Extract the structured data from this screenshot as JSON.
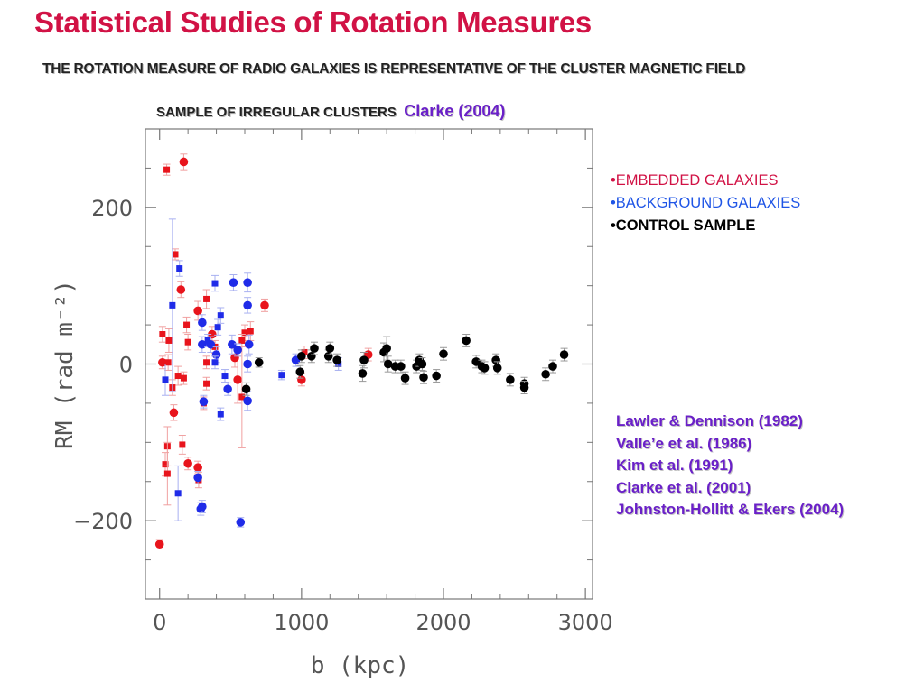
{
  "title": "Statistical Studies of Rotation Measures",
  "subtitle": "THE ROTATION MEASURE OF RADIO GALAXIES  IS REPRESENTATIVE  OF THE CLUSTER MAGNETIC FIELD",
  "sample": {
    "label": "SAMPLE OF IRREGULAR CLUSTERS",
    "reference": "Clarke (2004)"
  },
  "legend": [
    {
      "bullet": "•",
      "label": "EMBEDDED GALAXIES",
      "color": "#d11245"
    },
    {
      "bullet": "•",
      "label": "BACKGROUND GALAXIES",
      "color": "#1f55e6"
    },
    {
      "bullet": "•",
      "label": "CONTROL SAMPLE",
      "color": "#000000"
    }
  ],
  "references": [
    "Lawler & Dennison (1982)",
    "Valle’e et al. (1986)",
    "Kim et al. (1991)",
    "Clarke et al. (2001)",
    "Johnston-Hollitt & Ekers (2004)"
  ],
  "chart_data": {
    "type": "scatter",
    "xlabel": "b (kpc)",
    "ylabel": "RM (rad m⁻²)",
    "xlim": [
      -100,
      3050
    ],
    "ylim": [
      -300,
      300
    ],
    "x_ticks": [
      0,
      1000,
      2000,
      3000
    ],
    "x_tick_labels": [
      "0",
      "1000",
      "2000",
      "3000"
    ],
    "y_ticks": [
      -200,
      0,
      200
    ],
    "y_tick_labels": [
      "−200",
      "0",
      "200"
    ],
    "grid": false,
    "series": [
      {
        "name": "EMBEDDED GALAXIES",
        "color": "#e8141c",
        "points": [
          {
            "x": 50,
            "y": 248,
            "m": "s",
            "e": 7
          },
          {
            "x": 170,
            "y": 258,
            "m": "c",
            "e": 10
          },
          {
            "x": 110,
            "y": 140,
            "m": "s",
            "e": 7
          },
          {
            "x": 150,
            "y": 95,
            "m": "c",
            "e": 10
          },
          {
            "x": 20,
            "y": 38,
            "m": "s",
            "e": 10
          },
          {
            "x": 65,
            "y": 30,
            "m": "s",
            "e": 15
          },
          {
            "x": 20,
            "y": 2,
            "m": "c",
            "e": 8
          },
          {
            "x": 60,
            "y": 2,
            "m": "s",
            "e": 10
          },
          {
            "x": 130,
            "y": -15,
            "m": "s",
            "e": 12
          },
          {
            "x": 90,
            "y": -30,
            "m": "s",
            "e": 10
          },
          {
            "x": 170,
            "y": -18,
            "m": "s",
            "e": 8
          },
          {
            "x": 100,
            "y": -62,
            "m": "c",
            "e": 10
          },
          {
            "x": 40,
            "y": -128,
            "m": "s",
            "e": 15
          },
          {
            "x": 55,
            "y": -105,
            "m": "s",
            "e": 25
          },
          {
            "x": 55,
            "y": -140,
            "m": "s",
            "e": 40
          },
          {
            "x": 160,
            "y": -103,
            "m": "s",
            "e": 12
          },
          {
            "x": 200,
            "y": -127,
            "m": "c",
            "e": 8
          },
          {
            "x": 270,
            "y": -132,
            "m": "c",
            "e": 8
          },
          {
            "x": 275,
            "y": -148,
            "m": "s",
            "e": 10
          },
          {
            "x": 190,
            "y": 50,
            "m": "s",
            "e": 10
          },
          {
            "x": 270,
            "y": 68,
            "m": "c",
            "e": 12
          },
          {
            "x": 330,
            "y": 83,
            "m": "s",
            "e": 12
          },
          {
            "x": 200,
            "y": 28,
            "m": "s",
            "e": 10
          },
          {
            "x": 330,
            "y": 2,
            "m": "s",
            "e": 8
          },
          {
            "x": 310,
            "y": -50,
            "m": "s",
            "e": 8
          },
          {
            "x": 330,
            "y": -25,
            "m": "s",
            "e": 8
          },
          {
            "x": 370,
            "y": 38,
            "m": "c",
            "e": 10
          },
          {
            "x": 390,
            "y": 22,
            "m": "s",
            "e": 8
          },
          {
            "x": 550,
            "y": -20,
            "m": "c",
            "e": 30
          },
          {
            "x": 580,
            "y": -42,
            "m": "s",
            "e": 65
          },
          {
            "x": 600,
            "y": 40,
            "m": "s",
            "e": 10
          },
          {
            "x": 640,
            "y": 42,
            "m": "s",
            "e": 12
          },
          {
            "x": 580,
            "y": 30,
            "m": "s",
            "e": 8
          },
          {
            "x": 530,
            "y": 8,
            "m": "c",
            "e": 12
          },
          {
            "x": 740,
            "y": 75,
            "m": "c",
            "e": 8
          },
          {
            "x": 1020,
            "y": 15,
            "m": "s",
            "e": 8
          },
          {
            "x": 1000,
            "y": -20,
            "m": "c",
            "e": 8
          },
          {
            "x": 1470,
            "y": 12,
            "m": "c",
            "e": 8
          },
          {
            "x": 0,
            "y": -230,
            "m": "c",
            "e": 6
          }
        ]
      },
      {
        "name": "BACKGROUND GALAXIES",
        "color": "#1f2be8",
        "points": [
          {
            "x": 140,
            "y": 122,
            "m": "s",
            "e": 10
          },
          {
            "x": 90,
            "y": 75,
            "m": "s",
            "e": 110
          },
          {
            "x": 40,
            "y": -20,
            "m": "s",
            "e": 20
          },
          {
            "x": 130,
            "y": -165,
            "m": "s",
            "e": 35
          },
          {
            "x": 270,
            "y": -145,
            "m": "c",
            "e": 8
          },
          {
            "x": 290,
            "y": -185,
            "m": "c",
            "e": 8
          },
          {
            "x": 300,
            "y": -182,
            "m": "c",
            "e": 8
          },
          {
            "x": 390,
            "y": 103,
            "m": "s",
            "e": 10
          },
          {
            "x": 430,
            "y": 62,
            "m": "s",
            "e": 10
          },
          {
            "x": 300,
            "y": 53,
            "m": "c",
            "e": 10
          },
          {
            "x": 410,
            "y": 47,
            "m": "s",
            "e": 10
          },
          {
            "x": 300,
            "y": 25,
            "m": "c",
            "e": 10
          },
          {
            "x": 340,
            "y": 30,
            "m": "s",
            "e": 8
          },
          {
            "x": 360,
            "y": 25,
            "m": "c",
            "e": 10
          },
          {
            "x": 400,
            "y": 12,
            "m": "c",
            "e": 10
          },
          {
            "x": 390,
            "y": 2,
            "m": "s",
            "e": 8
          },
          {
            "x": 460,
            "y": -15,
            "m": "s",
            "e": 8
          },
          {
            "x": 480,
            "y": -32,
            "m": "c",
            "e": 8
          },
          {
            "x": 430,
            "y": -64,
            "m": "s",
            "e": 8
          },
          {
            "x": 310,
            "y": -48,
            "m": "c",
            "e": 8
          },
          {
            "x": 520,
            "y": 104,
            "m": "c",
            "e": 10
          },
          {
            "x": 620,
            "y": 104,
            "m": "c",
            "e": 12
          },
          {
            "x": 620,
            "y": 75,
            "m": "c",
            "e": 10
          },
          {
            "x": 510,
            "y": 25,
            "m": "c",
            "e": 12
          },
          {
            "x": 550,
            "y": 18,
            "m": "c",
            "e": 8
          },
          {
            "x": 630,
            "y": 25,
            "m": "c",
            "e": 12
          },
          {
            "x": 620,
            "y": 0,
            "m": "c",
            "e": 10
          },
          {
            "x": 620,
            "y": -47,
            "m": "c",
            "e": 12
          },
          {
            "x": 570,
            "y": -202,
            "m": "c",
            "e": 6
          },
          {
            "x": 860,
            "y": -14,
            "m": "s",
            "e": 6
          },
          {
            "x": 960,
            "y": 5,
            "m": "c",
            "e": 8
          },
          {
            "x": 1260,
            "y": 0,
            "m": "s",
            "e": 8
          }
        ]
      },
      {
        "name": "CONTROL SAMPLE",
        "color": "#000000",
        "points": [
          {
            "x": 700,
            "y": 2,
            "m": "c",
            "e": 6
          },
          {
            "x": 610,
            "y": -32,
            "m": "c",
            "e": 8
          },
          {
            "x": 990,
            "y": -10,
            "m": "c",
            "e": 8
          },
          {
            "x": 1000,
            "y": 10,
            "m": "c",
            "e": 8
          },
          {
            "x": 1070,
            "y": 10,
            "m": "c",
            "e": 8
          },
          {
            "x": 1090,
            "y": 20,
            "m": "c",
            "e": 8
          },
          {
            "x": 1190,
            "y": 10,
            "m": "c",
            "e": 8
          },
          {
            "x": 1200,
            "y": 20,
            "m": "c",
            "e": 8
          },
          {
            "x": 1250,
            "y": 5,
            "m": "c",
            "e": 8
          },
          {
            "x": 1440,
            "y": 5,
            "m": "c",
            "e": 10
          },
          {
            "x": 1430,
            "y": -12,
            "m": "c",
            "e": 10
          },
          {
            "x": 1580,
            "y": 15,
            "m": "c",
            "e": 12
          },
          {
            "x": 1600,
            "y": 20,
            "m": "c",
            "e": 15
          },
          {
            "x": 1610,
            "y": 0,
            "m": "c",
            "e": 10
          },
          {
            "x": 1660,
            "y": -3,
            "m": "c",
            "e": 8
          },
          {
            "x": 1700,
            "y": -3,
            "m": "c",
            "e": 8
          },
          {
            "x": 1730,
            "y": -18,
            "m": "c",
            "e": 8
          },
          {
            "x": 1810,
            "y": -3,
            "m": "c",
            "e": 8
          },
          {
            "x": 1830,
            "y": 5,
            "m": "c",
            "e": 8
          },
          {
            "x": 1850,
            "y": 0,
            "m": "c",
            "e": 8
          },
          {
            "x": 1860,
            "y": -17,
            "m": "c",
            "e": 8
          },
          {
            "x": 1950,
            "y": -15,
            "m": "c",
            "e": 8
          },
          {
            "x": 2000,
            "y": 13,
            "m": "c",
            "e": 8
          },
          {
            "x": 2160,
            "y": 30,
            "m": "c",
            "e": 8
          },
          {
            "x": 2230,
            "y": 3,
            "m": "c",
            "e": 8
          },
          {
            "x": 2270,
            "y": -3,
            "m": "c",
            "e": 8
          },
          {
            "x": 2290,
            "y": -5,
            "m": "c",
            "e": 8
          },
          {
            "x": 2370,
            "y": 5,
            "m": "c",
            "e": 8
          },
          {
            "x": 2380,
            "y": -5,
            "m": "c",
            "e": 8
          },
          {
            "x": 2470,
            "y": -20,
            "m": "c",
            "e": 8
          },
          {
            "x": 2570,
            "y": -25,
            "m": "c",
            "e": 8
          },
          {
            "x": 2570,
            "y": -30,
            "m": "c",
            "e": 8
          },
          {
            "x": 2720,
            "y": -13,
            "m": "c",
            "e": 8
          },
          {
            "x": 2770,
            "y": -3,
            "m": "c",
            "e": 8
          },
          {
            "x": 2850,
            "y": 12,
            "m": "c",
            "e": 8
          }
        ]
      }
    ]
  }
}
